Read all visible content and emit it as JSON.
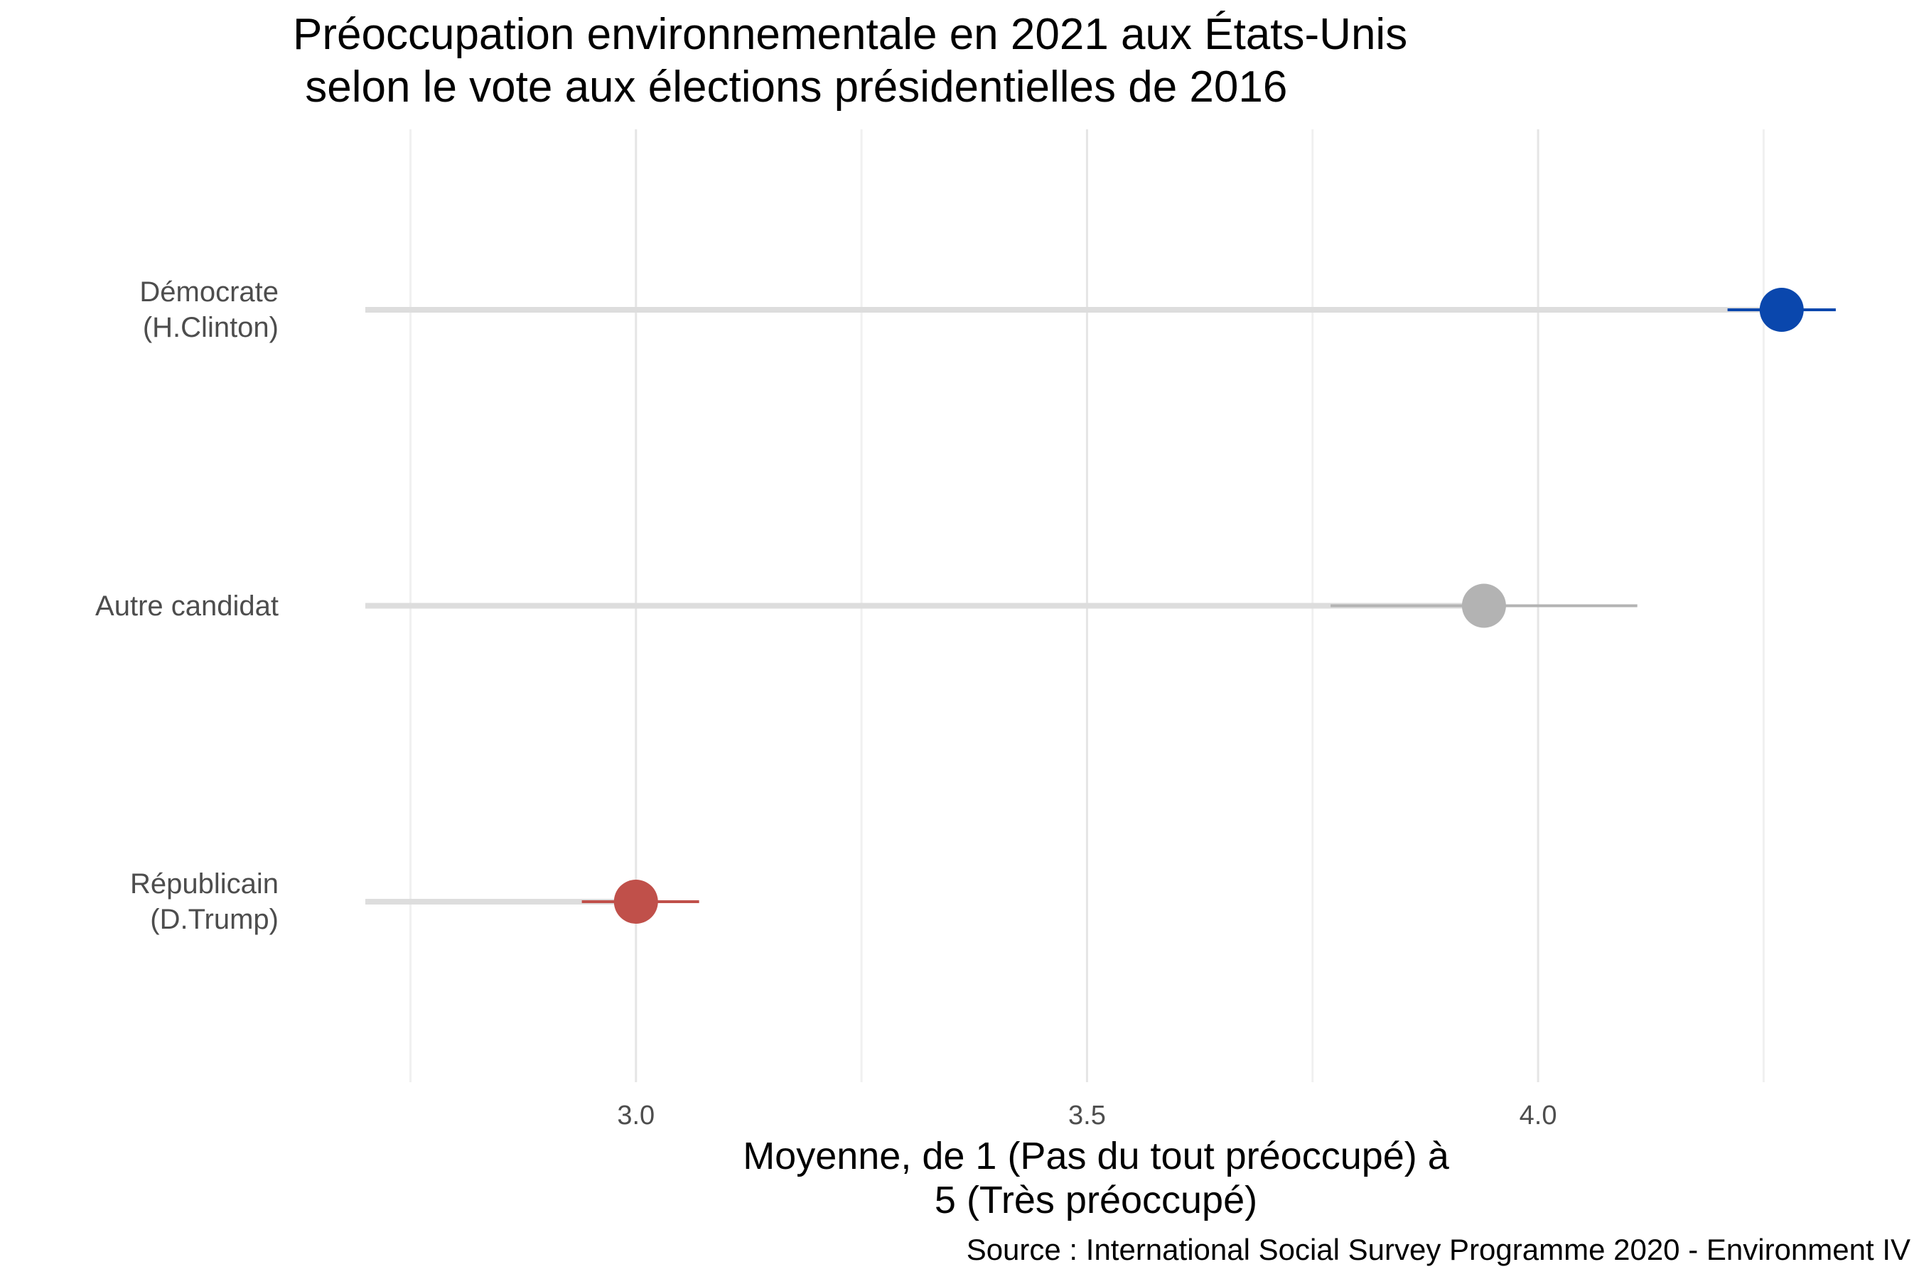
{
  "chart_data": {
    "type": "dot",
    "title": "Préoccupation environnementale en 2021 aux États-Unis\n selon le vote aux élections présidentielles de 2016",
    "x_label": "Moyenne, de 1 (Pas du tout préoccupé) à\n5 (Très préoccupé)",
    "caption": "Source : International Social Survey Programme 2020 - Environment IV",
    "categories": [
      "Démocrate\n(H.Clinton)",
      "Autre candidat",
      "Républicain\n(D.Trump)"
    ],
    "values": [
      4.27,
      3.94,
      3.0
    ],
    "ci_low": [
      4.21,
      3.77,
      2.94
    ],
    "ci_high": [
      4.33,
      4.11,
      3.07
    ],
    "colors": [
      "#0a47ad",
      "#b3b3b3",
      "#c0504a"
    ],
    "stem_color": "#dddddd",
    "xlim": [
      2.7,
      4.36
    ],
    "xticks": [
      {
        "value": 3,
        "label": "3.0"
      },
      3.5,
      {
        "value": 4,
        "label": "4.0"
      }
    ],
    "minor_xticks": [
      2.75,
      3.25,
      3.75,
      4.25
    ],
    "grid": true
  }
}
